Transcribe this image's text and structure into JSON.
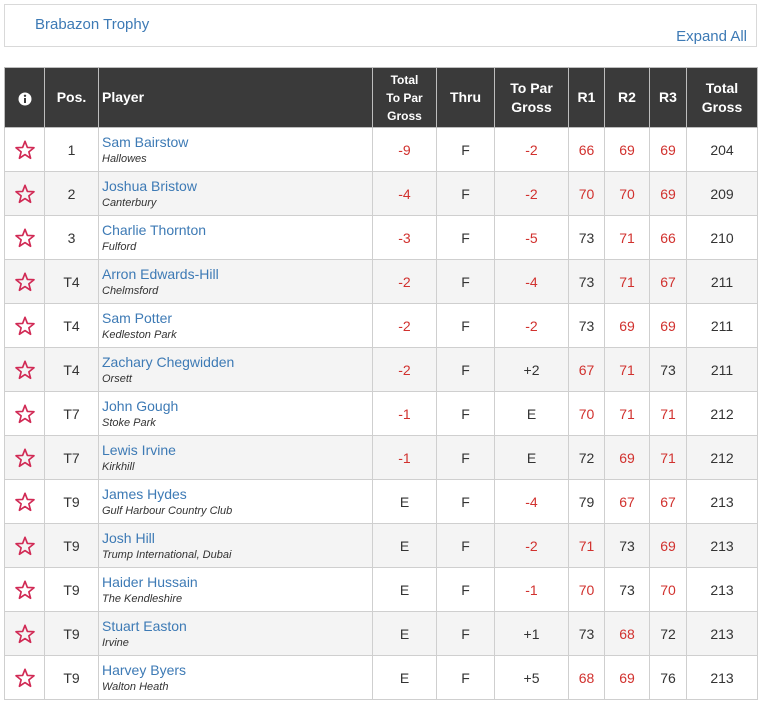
{
  "header": {
    "tournament": "Brabazon Trophy",
    "expand_all": "Expand All"
  },
  "columns": {
    "info": "i",
    "pos": "Pos.",
    "player": "Player",
    "total_to_par_gross": "Total To Par Gross",
    "thru": "Thru",
    "to_par_gross": "To Par Gross",
    "r1": "R1",
    "r2": "R2",
    "r3": "R3",
    "total_gross": "Total Gross"
  },
  "colors": {
    "accent": "#d1312e",
    "link": "#3d7ab5",
    "header_bg": "#3a3a3a"
  },
  "rows": [
    {
      "pos": "1",
      "name": "Sam Bairstow",
      "club": "Hallowes",
      "total_to_par": "-9",
      "thru": "F",
      "to_par": "-2",
      "r1": "66",
      "r2": "69",
      "r3": "69",
      "total": "204"
    },
    {
      "pos": "2",
      "name": "Joshua Bristow",
      "club": "Canterbury",
      "total_to_par": "-4",
      "thru": "F",
      "to_par": "-2",
      "r1": "70",
      "r2": "70",
      "r3": "69",
      "total": "209"
    },
    {
      "pos": "3",
      "name": "Charlie Thornton",
      "club": "Fulford",
      "total_to_par": "-3",
      "thru": "F",
      "to_par": "-5",
      "r1": "73",
      "r2": "71",
      "r3": "66",
      "total": "210"
    },
    {
      "pos": "T4",
      "name": "Arron Edwards-Hill",
      "club": "Chelmsford",
      "total_to_par": "-2",
      "thru": "F",
      "to_par": "-4",
      "r1": "73",
      "r2": "71",
      "r3": "67",
      "total": "211"
    },
    {
      "pos": "T4",
      "name": "Sam Potter",
      "club": "Kedleston Park",
      "total_to_par": "-2",
      "thru": "F",
      "to_par": "-2",
      "r1": "73",
      "r2": "69",
      "r3": "69",
      "total": "211"
    },
    {
      "pos": "T4",
      "name": "Zachary Chegwidden",
      "club": "Orsett",
      "total_to_par": "-2",
      "thru": "F",
      "to_par": "+2",
      "r1": "67",
      "r2": "71",
      "r3": "73",
      "total": "211"
    },
    {
      "pos": "T7",
      "name": "John Gough",
      "club": "Stoke Park",
      "total_to_par": "-1",
      "thru": "F",
      "to_par": "E",
      "r1": "70",
      "r2": "71",
      "r3": "71",
      "total": "212"
    },
    {
      "pos": "T7",
      "name": "Lewis Irvine",
      "club": "Kirkhill",
      "total_to_par": "-1",
      "thru": "F",
      "to_par": "E",
      "r1": "72",
      "r2": "69",
      "r3": "71",
      "total": "212"
    },
    {
      "pos": "T9",
      "name": "James Hydes",
      "club": "Gulf Harbour Country Club",
      "total_to_par": "E",
      "thru": "F",
      "to_par": "-4",
      "r1": "79",
      "r2": "67",
      "r3": "67",
      "total": "213"
    },
    {
      "pos": "T9",
      "name": "Josh Hill",
      "club": "Trump International, Dubai",
      "total_to_par": "E",
      "thru": "F",
      "to_par": "-2",
      "r1": "71",
      "r2": "73",
      "r3": "69",
      "total": "213"
    },
    {
      "pos": "T9",
      "name": "Haider Hussain",
      "club": "The Kendleshire",
      "total_to_par": "E",
      "thru": "F",
      "to_par": "-1",
      "r1": "70",
      "r2": "73",
      "r3": "70",
      "total": "213"
    },
    {
      "pos": "T9",
      "name": "Stuart Easton",
      "club": "Irvine",
      "total_to_par": "E",
      "thru": "F",
      "to_par": "+1",
      "r1": "73",
      "r2": "68",
      "r3": "72",
      "total": "213"
    },
    {
      "pos": "T9",
      "name": "Harvey Byers",
      "club": "Walton Heath",
      "total_to_par": "E",
      "thru": "F",
      "to_par": "+5",
      "r1": "68",
      "r2": "69",
      "r3": "76",
      "total": "213"
    }
  ]
}
